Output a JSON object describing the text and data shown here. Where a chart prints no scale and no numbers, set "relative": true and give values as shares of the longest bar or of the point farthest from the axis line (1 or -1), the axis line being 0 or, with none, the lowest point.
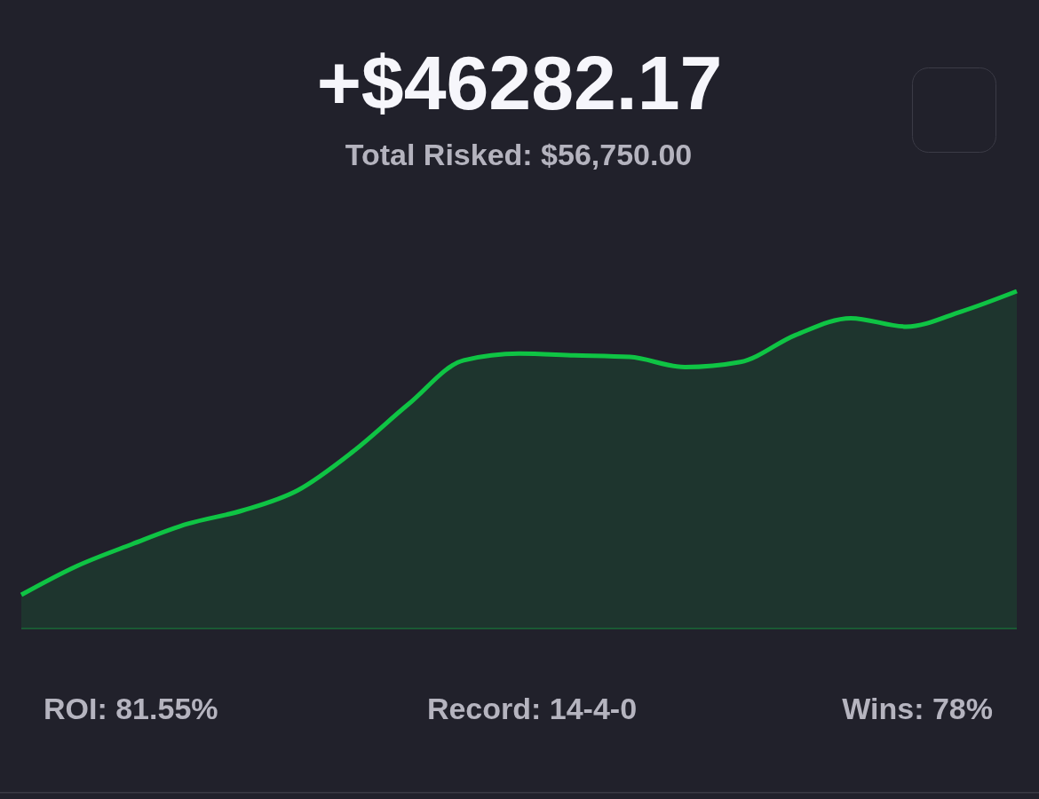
{
  "chart_data": {
    "type": "area",
    "title": "+$46282.17",
    "subtitle": "Total Risked: $56,750.00",
    "annotations": [
      "ROI: 81.55%",
      "Record: 14-4-0",
      "Wins: 78%"
    ],
    "categories": [
      null,
      null,
      null,
      null,
      null,
      null,
      null,
      null,
      null,
      null,
      null,
      null,
      null,
      null,
      null,
      null,
      null,
      null,
      null
    ],
    "series": [
      {
        "color": "#0fc444",
        "values": [
          0.1,
          0.185,
          0.25,
          0.31,
          0.35,
          0.41,
          0.525,
          0.665,
          0.795,
          0.815,
          0.81,
          0.805,
          0.775,
          0.79,
          0.87,
          0.92,
          0.895,
          0.94,
          1
        ]
      }
    ],
    "relative": true
  }
}
